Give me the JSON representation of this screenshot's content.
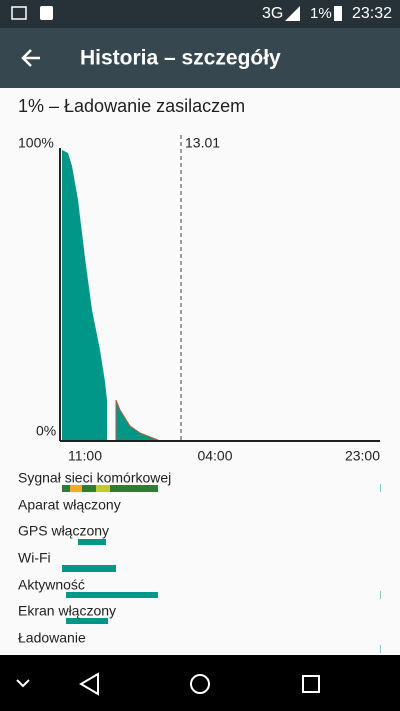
{
  "status_bar": {
    "network": "3G",
    "battery": "1%",
    "time": "23:32"
  },
  "app_bar": {
    "title": "Historia – szczegóły"
  },
  "summary": "1% – Ładowanie zasilaczem",
  "graph": {
    "y_labels": [
      "100%",
      "0%"
    ],
    "date_marker": "13.01",
    "x_labels": [
      "11:00",
      "04:00",
      "23:00"
    ]
  },
  "rows": [
    "Sygnał sieci komórkowej",
    "Aparat włączony",
    "GPS włączony",
    "Wi-Fi",
    "Aktywność",
    "Ekran włączony",
    "Ładowanie"
  ]
}
